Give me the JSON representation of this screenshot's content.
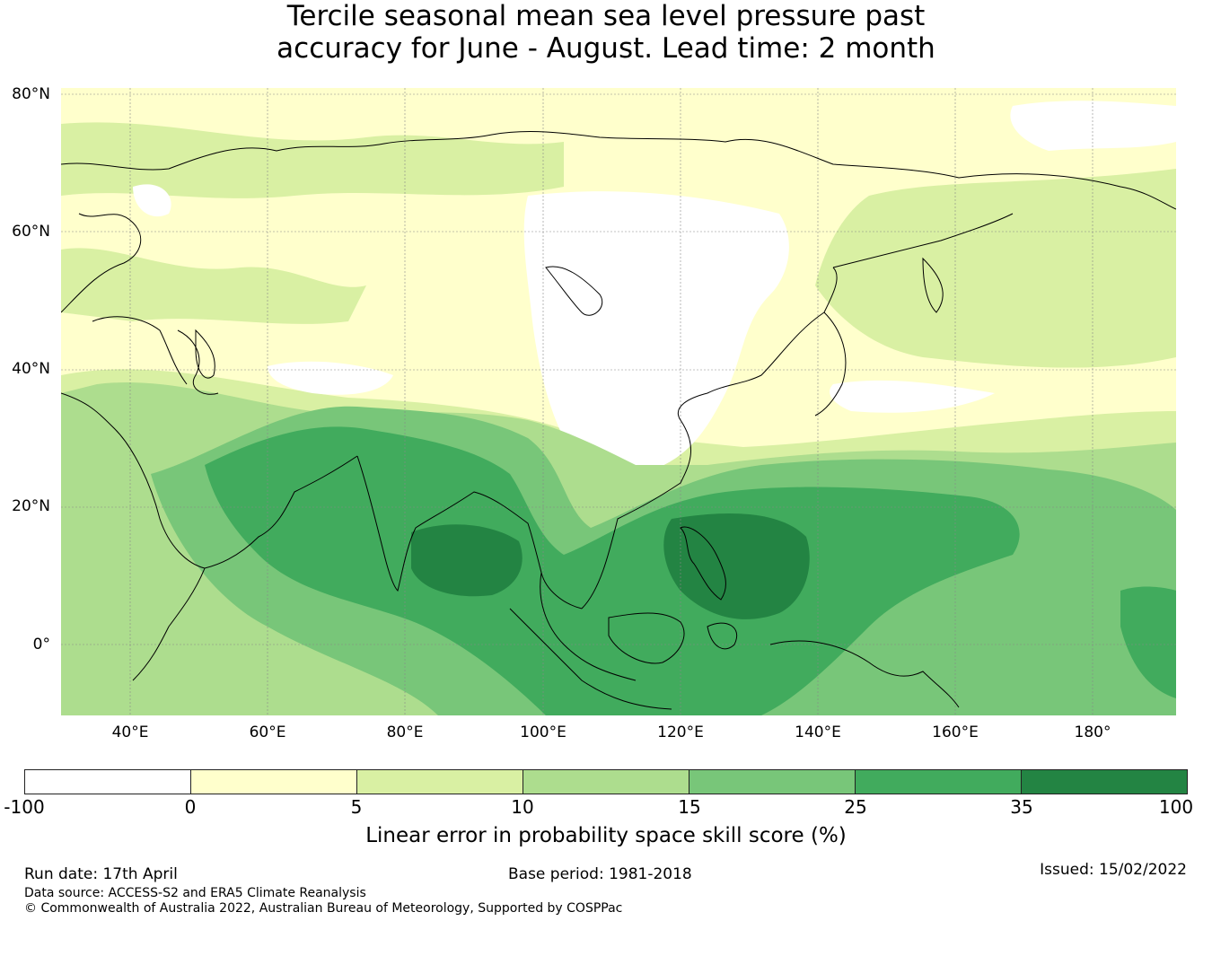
{
  "title": {
    "line1": "Tercile seasonal mean sea level pressure past",
    "line2": "accuracy for June - August. Lead time: 2 month"
  },
  "map": {
    "lat_labels": [
      "80°N",
      "60°N",
      "40°N",
      "20°N",
      "0°"
    ],
    "lon_labels": [
      "40°E",
      "60°E",
      "80°E",
      "100°E",
      "120°E",
      "140°E",
      "160°E",
      "180°"
    ],
    "extent": {
      "lon": [
        30,
        192
      ],
      "lat": [
        -10,
        81
      ]
    },
    "grid": true
  },
  "colorbar": {
    "ticks": [
      "-100",
      "0",
      "5",
      "10",
      "15",
      "25",
      "35",
      "100"
    ],
    "colors": [
      "#ffffff",
      "#ffffcc",
      "#d9f0a3",
      "#addd8e",
      "#78c679",
      "#41ab5d",
      "#238443"
    ],
    "label": "Linear error in probability space skill score (%)"
  },
  "footer": {
    "run_date": "Run date: 17th April",
    "base_period": "Base period: 1981-2018",
    "issued": "Issued: 15/02/2022",
    "data_source": "Data source: ACCESS-S2 and ERA5 Climate Reanalysis",
    "copyright": "© Commonwealth of Australia 2022, Australian Bureau of Meteorology, Supported by COSPPac"
  }
}
